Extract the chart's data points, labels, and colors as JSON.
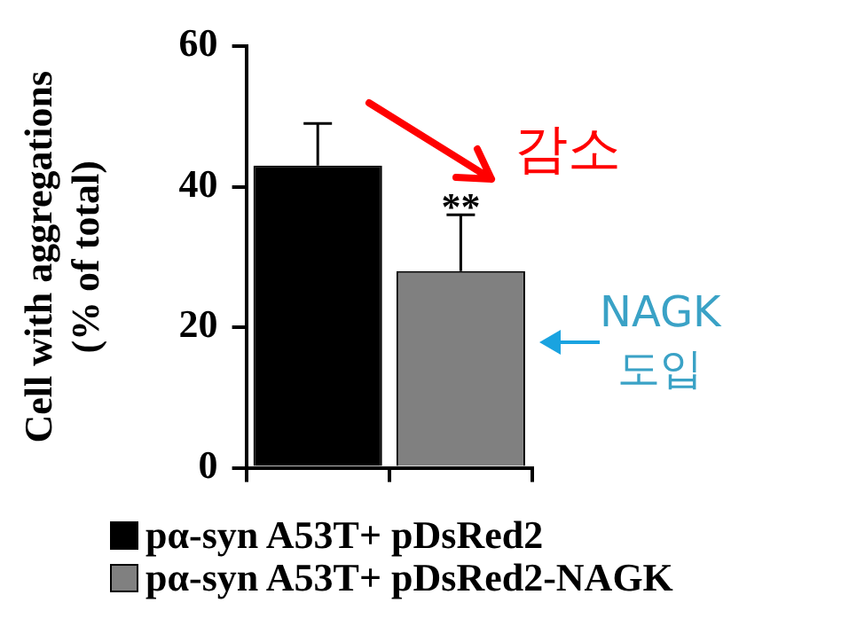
{
  "chart_data": {
    "type": "bar",
    "ylabel": "Cell with aggregations\n(% of total)",
    "categories": [
      null,
      null
    ],
    "series": [
      {
        "name": "pα-syn A53T+ pDsRed2",
        "color": "#000000",
        "values": [
          43,
          null
        ],
        "errors": [
          [
            43,
            49
          ],
          null
        ]
      },
      {
        "name": "pα-syn A53T+ pDsRed2-NAGK",
        "color": "#808080",
        "values": [
          null,
          28
        ],
        "errors": [
          null,
          [
            28,
            36
          ]
        ]
      }
    ],
    "ylim": [
      0,
      60
    ],
    "yticks": [
      0,
      20,
      40,
      60
    ],
    "grid": false,
    "legend": "bottom",
    "annotations": [
      {
        "text": "**",
        "y": 36
      },
      "감소",
      "NAGK\n도입"
    ]
  }
}
